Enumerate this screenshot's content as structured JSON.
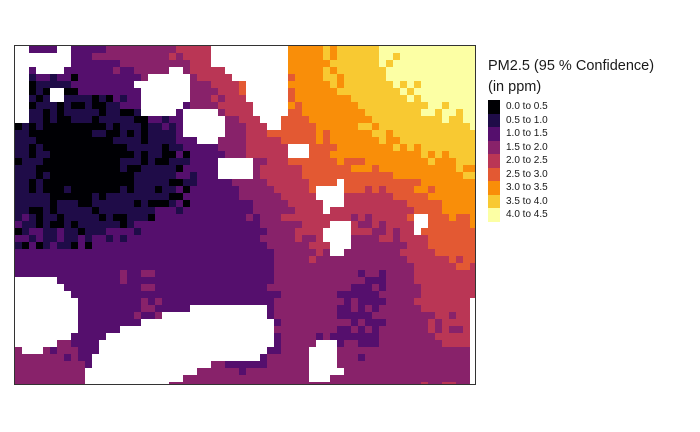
{
  "legend": {
    "title_line1": "PM2.5 (95 % Confidence)",
    "title_line2": "(in ppm)",
    "classes": [
      {
        "label": "0.0 to 0.5",
        "color": "#000004"
      },
      {
        "label": "0.5 to 1.0",
        "color": "#1f0c48"
      },
      {
        "label": "1.0 to 1.5",
        "color": "#550f6d"
      },
      {
        "label": "1.5 to 2.0",
        "color": "#88226a"
      },
      {
        "label": "2.0 to 2.5",
        "color": "#ba3655"
      },
      {
        "label": "2.5 to 3.0",
        "color": "#e35933"
      },
      {
        "label": "3.0 to 3.5",
        "color": "#f98e09"
      },
      {
        "label": "3.5 to 4.0",
        "color": "#f8c932"
      },
      {
        "label": "4.0 to 4.5",
        "color": "#fcffa4"
      }
    ]
  },
  "map": {
    "surface_description": "pm25-upper-confidence-raster",
    "no_data_color": "#ffffff"
  }
}
